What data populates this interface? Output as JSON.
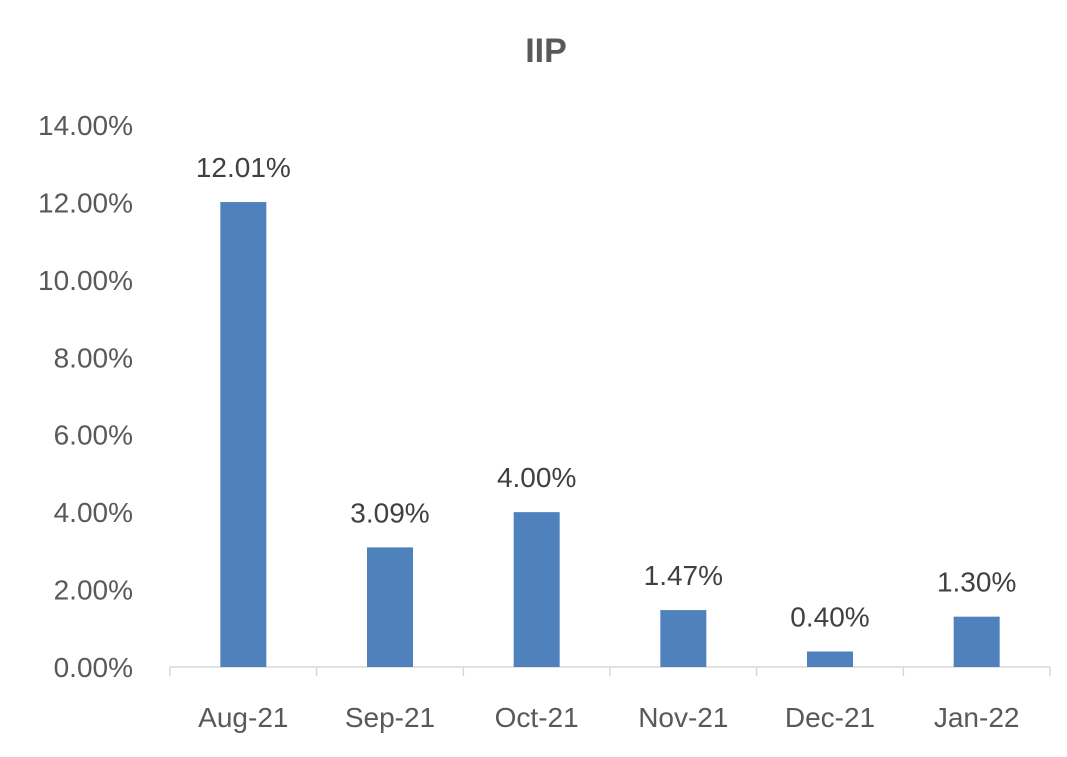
{
  "chart_data": {
    "type": "bar",
    "title": "IIP",
    "xlabel": "",
    "ylabel": "",
    "categories": [
      "Aug-21",
      "Sep-21",
      "Oct-21",
      "Nov-21",
      "Dec-21",
      "Jan-22"
    ],
    "values": [
      12.01,
      3.09,
      4.0,
      1.47,
      0.4,
      1.3
    ],
    "data_labels": [
      "12.01%",
      "3.09%",
      "4.00%",
      "1.47%",
      "0.40%",
      "1.30%"
    ],
    "ylim": [
      0,
      14
    ],
    "yticks": [
      0,
      2,
      4,
      6,
      8,
      10,
      12,
      14
    ],
    "ytick_labels": [
      "0.00%",
      "2.00%",
      "4.00%",
      "6.00%",
      "8.00%",
      "10.00%",
      "12.00%",
      "14.00%"
    ],
    "grid": false,
    "legend": "none",
    "bar_color": "#4f81bd"
  }
}
